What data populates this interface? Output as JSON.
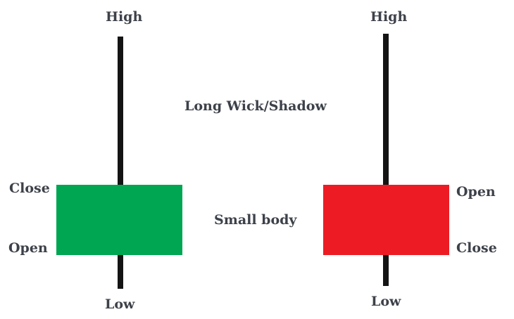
{
  "center_labels": {
    "wick": "Long Wick/Shadow",
    "body": "Small body"
  },
  "candles": [
    {
      "name": "bullish",
      "color": "#00a651",
      "high_label": "High",
      "low_label": "Low",
      "top_body_label": "Close",
      "bottom_body_label": "Open"
    },
    {
      "name": "bearish",
      "color": "#ed1c24",
      "high_label": "High",
      "low_label": "Low",
      "top_body_label": "Open",
      "bottom_body_label": "Close"
    }
  ]
}
